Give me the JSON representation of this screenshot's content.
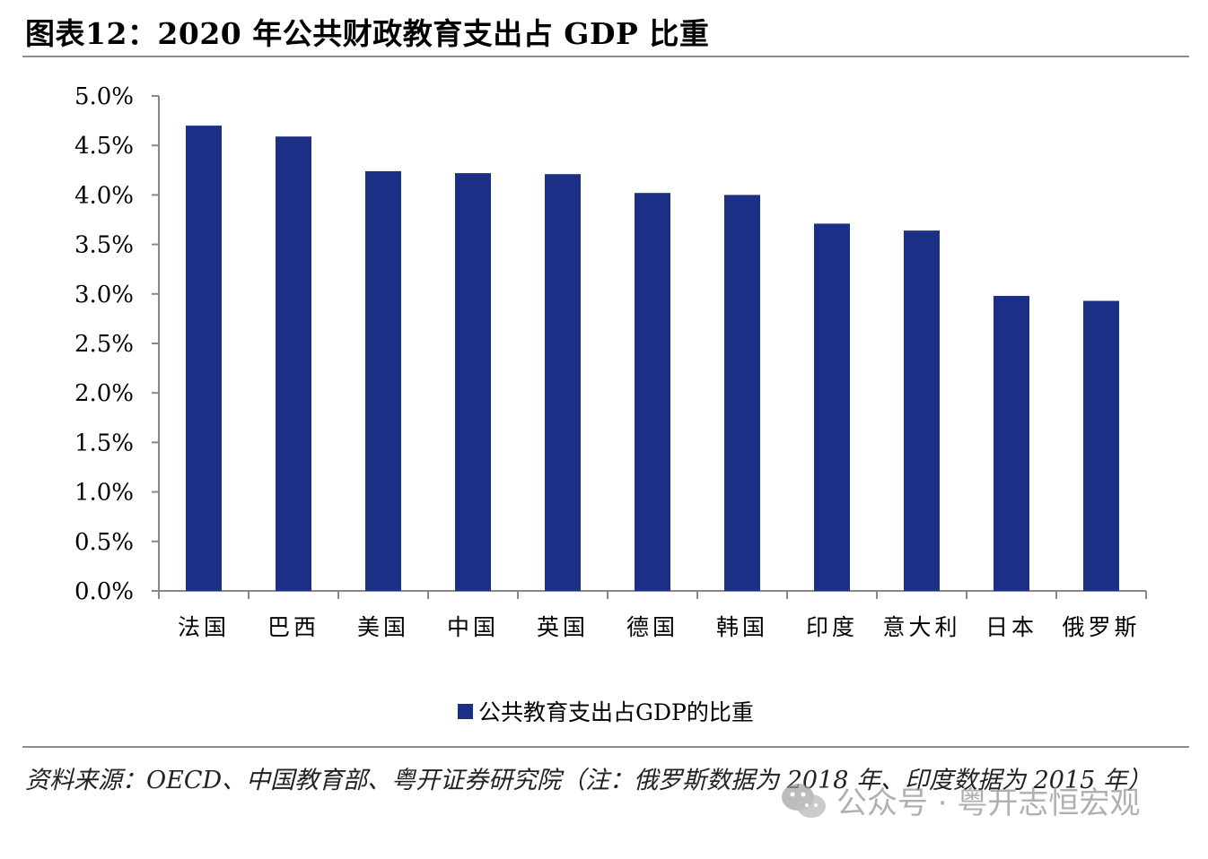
{
  "header": {
    "title": "图表12：2020 年公共财政教育支出占 GDP 比重"
  },
  "colors": {
    "bar": "#1a2f85",
    "axis": "#888888",
    "text": "#000000"
  },
  "chart_data": {
    "type": "bar",
    "title": "图表12：2020 年公共财政教育支出占 GDP 比重",
    "xlabel": "",
    "ylabel": "",
    "categories": [
      "法国",
      "巴西",
      "美国",
      "中国",
      "英国",
      "德国",
      "韩国",
      "印度",
      "意大利",
      "日本",
      "俄罗斯"
    ],
    "series": [
      {
        "name": "公共教育支出占GDP的比重",
        "values": [
          4.7,
          4.59,
          4.24,
          4.22,
          4.21,
          4.02,
          4.0,
          3.71,
          3.64,
          2.98,
          2.93
        ]
      }
    ],
    "ylim": [
      0,
      5
    ],
    "yticks": [
      "0.0%",
      "0.5%",
      "1.0%",
      "1.5%",
      "2.0%",
      "2.5%",
      "3.0%",
      "3.5%",
      "4.0%",
      "4.5%",
      "5.0%"
    ],
    "grid": false,
    "legend_position": "bottom"
  },
  "legend": {
    "label": "公共教育支出占GDP的比重"
  },
  "source": {
    "text": "资料来源：OECD、中国教育部、粤开证券研究院（注：俄罗斯数据为 2018 年、印度数据为 2015 年）"
  },
  "watermark": {
    "icon": "wechat-icon",
    "text": "公众号 · 粤开志恒宏观"
  }
}
